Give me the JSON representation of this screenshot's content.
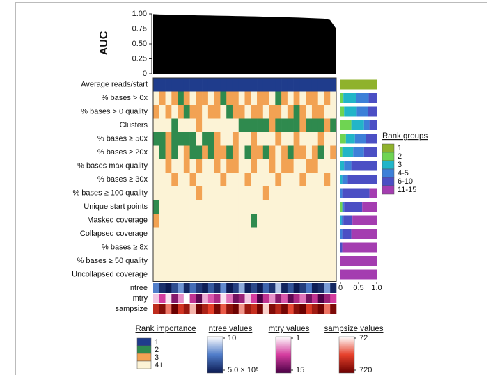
{
  "chart_data": [
    {
      "type": "area",
      "ylabel": "AUC",
      "color": "#000000",
      "values": [
        0.995,
        0.99,
        0.988,
        0.985,
        0.982,
        0.98,
        0.978,
        0.976,
        0.974,
        0.972,
        0.97,
        0.968,
        0.966,
        0.964,
        0.962,
        0.96,
        0.958,
        0.955,
        0.952,
        0.95,
        0.947,
        0.944,
        0.94,
        0.937,
        0.933,
        0.929,
        0.925,
        0.92,
        0.9,
        0.75
      ],
      "ylim": [
        0,
        1
      ],
      "yticks": [
        0,
        0.25,
        {
          "value": 0.5,
          "label": "0.50"
        },
        0.75,
        {
          "value": 1,
          "label": "1.00"
        }
      ]
    },
    {
      "type": "heatmap",
      "legend_title": "Rank importance",
      "levels": [
        {
          "name": "1",
          "color": "#1f3c8c"
        },
        {
          "name": "2",
          "color": "#2f8a4e"
        },
        {
          "name": "3",
          "color": "#f2a253"
        },
        {
          "name": "4+",
          "color": "#fcf3d6"
        }
      ],
      "rows": [
        {
          "name": "Average reads/start",
          "values": [
            1,
            1,
            1,
            1,
            1,
            1,
            1,
            1,
            1,
            1,
            1,
            1,
            1,
            1,
            1,
            1,
            1,
            1,
            1,
            1,
            1,
            1,
            1,
            1,
            1,
            1,
            1,
            1,
            1,
            1
          ]
        },
        {
          "name": "% bases > 0x",
          "values": [
            4,
            3,
            4,
            3,
            2,
            3,
            4,
            3,
            3,
            4,
            3,
            2,
            3,
            3,
            4,
            3,
            4,
            3,
            3,
            4,
            2,
            3,
            4,
            3,
            4,
            3,
            3,
            4,
            3,
            4
          ]
        },
        {
          "name": "% bases > 0 quality",
          "values": [
            3,
            4,
            3,
            4,
            3,
            2,
            3,
            3,
            4,
            3,
            3,
            4,
            2,
            3,
            3,
            4,
            3,
            3,
            4,
            3,
            3,
            4,
            3,
            2,
            3,
            4,
            3,
            3,
            4,
            4
          ]
        },
        {
          "name": "Clusters",
          "values": [
            4,
            4,
            4,
            2,
            4,
            4,
            4,
            3,
            4,
            4,
            4,
            4,
            4,
            4,
            2,
            2,
            2,
            2,
            2,
            3,
            2,
            2,
            2,
            2,
            3,
            2,
            2,
            2,
            3,
            2
          ]
        },
        {
          "name": "% bases ≥ 50x",
          "values": [
            2,
            2,
            3,
            2,
            2,
            2,
            2,
            4,
            2,
            2,
            3,
            4,
            4,
            3,
            4,
            4,
            3,
            4,
            4,
            4,
            3,
            4,
            4,
            3,
            4,
            4,
            4,
            3,
            4,
            4
          ]
        },
        {
          "name": "% bases ≥ 20x",
          "values": [
            4,
            2,
            3,
            2,
            4,
            3,
            2,
            2,
            3,
            2,
            3,
            3,
            2,
            3,
            4,
            2,
            3,
            3,
            2,
            3,
            4,
            3,
            2,
            3,
            3,
            4,
            3,
            2,
            4,
            3
          ]
        },
        {
          "name": "% bases max quality",
          "values": [
            4,
            4,
            3,
            4,
            4,
            3,
            4,
            3,
            4,
            4,
            3,
            4,
            3,
            3,
            4,
            4,
            3,
            4,
            4,
            3,
            4,
            3,
            3,
            4,
            4,
            3,
            3,
            4,
            4,
            4
          ]
        },
        {
          "name": "% bases ≥ 30x",
          "values": [
            4,
            4,
            4,
            3,
            4,
            4,
            3,
            4,
            4,
            4,
            4,
            3,
            4,
            4,
            4,
            3,
            4,
            4,
            4,
            4,
            3,
            4,
            4,
            4,
            3,
            4,
            4,
            4,
            3,
            4
          ]
        },
        {
          "name": "% bases ≥ 100 quality",
          "values": [
            4,
            4,
            4,
            4,
            4,
            4,
            4,
            3,
            4,
            4,
            4,
            4,
            4,
            4,
            4,
            4,
            4,
            4,
            3,
            4,
            4,
            4,
            4,
            4,
            4,
            4,
            4,
            4,
            4,
            4
          ]
        },
        {
          "name": "Unique start points",
          "values": [
            2,
            4,
            4,
            4,
            4,
            4,
            4,
            4,
            4,
            4,
            4,
            4,
            4,
            4,
            4,
            4,
            4,
            4,
            4,
            4,
            4,
            4,
            4,
            4,
            4,
            4,
            4,
            4,
            4,
            4
          ]
        },
        {
          "name": "Masked coverage",
          "values": [
            3,
            4,
            4,
            4,
            4,
            4,
            4,
            4,
            4,
            4,
            4,
            4,
            4,
            4,
            4,
            4,
            2,
            4,
            4,
            4,
            4,
            4,
            4,
            4,
            4,
            4,
            4,
            4,
            4,
            4
          ]
        },
        {
          "name": "Collapsed coverage",
          "values": [
            4,
            4,
            4,
            4,
            4,
            4,
            4,
            4,
            4,
            4,
            4,
            4,
            4,
            4,
            4,
            4,
            4,
            4,
            4,
            4,
            4,
            4,
            4,
            4,
            4,
            4,
            4,
            4,
            4,
            4
          ]
        },
        {
          "name": "% bases ≥ 8x",
          "values": [
            4,
            4,
            4,
            4,
            4,
            4,
            4,
            4,
            4,
            4,
            4,
            4,
            4,
            4,
            4,
            4,
            4,
            4,
            4,
            4,
            4,
            4,
            4,
            4,
            4,
            4,
            4,
            4,
            4,
            4
          ]
        },
        {
          "name": "% bases ≥ 50 quality",
          "values": [
            4,
            4,
            4,
            4,
            4,
            4,
            4,
            4,
            4,
            4,
            4,
            4,
            4,
            4,
            4,
            4,
            4,
            4,
            4,
            4,
            4,
            4,
            4,
            4,
            4,
            4,
            4,
            4,
            4,
            4
          ]
        },
        {
          "name": "Uncollapsed coverage",
          "values": [
            4,
            4,
            4,
            4,
            4,
            4,
            4,
            4,
            4,
            4,
            4,
            4,
            4,
            4,
            4,
            4,
            4,
            4,
            4,
            4,
            4,
            4,
            4,
            4,
            4,
            4,
            4,
            4,
            4,
            4
          ]
        }
      ],
      "params": [
        {
          "name": "ntree",
          "title": "ntree values",
          "log": true,
          "lim": [
            10,
            500000
          ],
          "ticks": [
            10,
            {
              "value": 500000,
              "label": "5.0 × 10⁵"
            }
          ],
          "colors": [
            "#ffffff",
            "#4f7cc9",
            "#0b1a52"
          ],
          "values": [
            2000,
            150000,
            500000,
            30000,
            800,
            250000,
            5000,
            90000,
            400000,
            15000,
            200000,
            1200,
            480000,
            60000,
            300,
            350000,
            40000,
            450000,
            8000,
            120000,
            100,
            300000,
            20000,
            500000,
            70000,
            3000,
            420000,
            180000,
            600,
            250000
          ]
        },
        {
          "name": "mtry",
          "title": "mtry values",
          "log": false,
          "lim": [
            1,
            15
          ],
          "ticks": [
            1,
            15
          ],
          "colors": [
            "#ffffff",
            "#d43c9e",
            "#4a0045"
          ],
          "values": [
            3,
            8,
            2,
            12,
            5,
            1,
            9,
            14,
            4,
            7,
            10,
            2,
            6,
            13,
            11,
            3,
            8,
            15,
            9,
            5,
            12,
            7,
            14,
            10,
            6,
            13,
            9,
            15,
            11,
            8
          ]
        },
        {
          "name": "sampsize",
          "title": "sampsize values",
          "log": false,
          "lim": [
            72,
            720
          ],
          "ticks": [
            72,
            720
          ],
          "colors": [
            "#ffffff",
            "#e6402b",
            "#6a0000"
          ],
          "values": [
            500,
            650,
            300,
            720,
            450,
            600,
            200,
            700,
            550,
            400,
            680,
            350,
            620,
            710,
            250,
            590,
            480,
            700,
            150,
            660,
            520,
            690,
            380,
            640,
            720,
            430,
            580,
            700,
            310,
            670
          ]
        }
      ]
    },
    {
      "type": "stacked_bar",
      "horizontal": true,
      "legend_title": "Rank groups",
      "xlim": [
        0,
        1
      ],
      "xticks": [
        0,
        0.5,
        {
          "value": 1,
          "label": "1.0"
        }
      ],
      "series": [
        {
          "name": "1",
          "color": "#8fb22c",
          "values": [
            1,
            0,
            0,
            0,
            0,
            0,
            0,
            0,
            0,
            0,
            0,
            0,
            0,
            0,
            0
          ]
        },
        {
          "name": "2",
          "color": "#6fd452",
          "values": [
            0,
            0.08,
            0.1,
            0.3,
            0.15,
            0.05,
            0,
            0,
            0,
            0.05,
            0,
            0,
            0,
            0,
            0
          ]
        },
        {
          "name": "3",
          "color": "#22b5c8",
          "values": [
            0,
            0.35,
            0.35,
            0.35,
            0.25,
            0.3,
            0.1,
            0.05,
            0,
            0,
            0.03,
            0,
            0,
            0,
            0
          ]
        },
        {
          "name": "4-5",
          "color": "#3d80d8",
          "values": [
            0,
            0.35,
            0.3,
            0.15,
            0.3,
            0.3,
            0.2,
            0.15,
            0.05,
            0.05,
            0.05,
            0.05,
            0,
            0,
            0
          ]
        },
        {
          "name": "6-10",
          "color": "#4b4fc4",
          "values": [
            0,
            0.22,
            0.25,
            0.2,
            0.3,
            0.35,
            0.7,
            0.8,
            0.75,
            0.5,
            0.25,
            0.25,
            0.05,
            0,
            0
          ]
        },
        {
          "name": "11-15",
          "color": "#a43db0",
          "values": [
            0,
            0,
            0,
            0,
            0,
            0,
            0,
            0,
            0.2,
            0.4,
            0.67,
            0.7,
            0.95,
            1,
            1
          ]
        }
      ]
    }
  ]
}
